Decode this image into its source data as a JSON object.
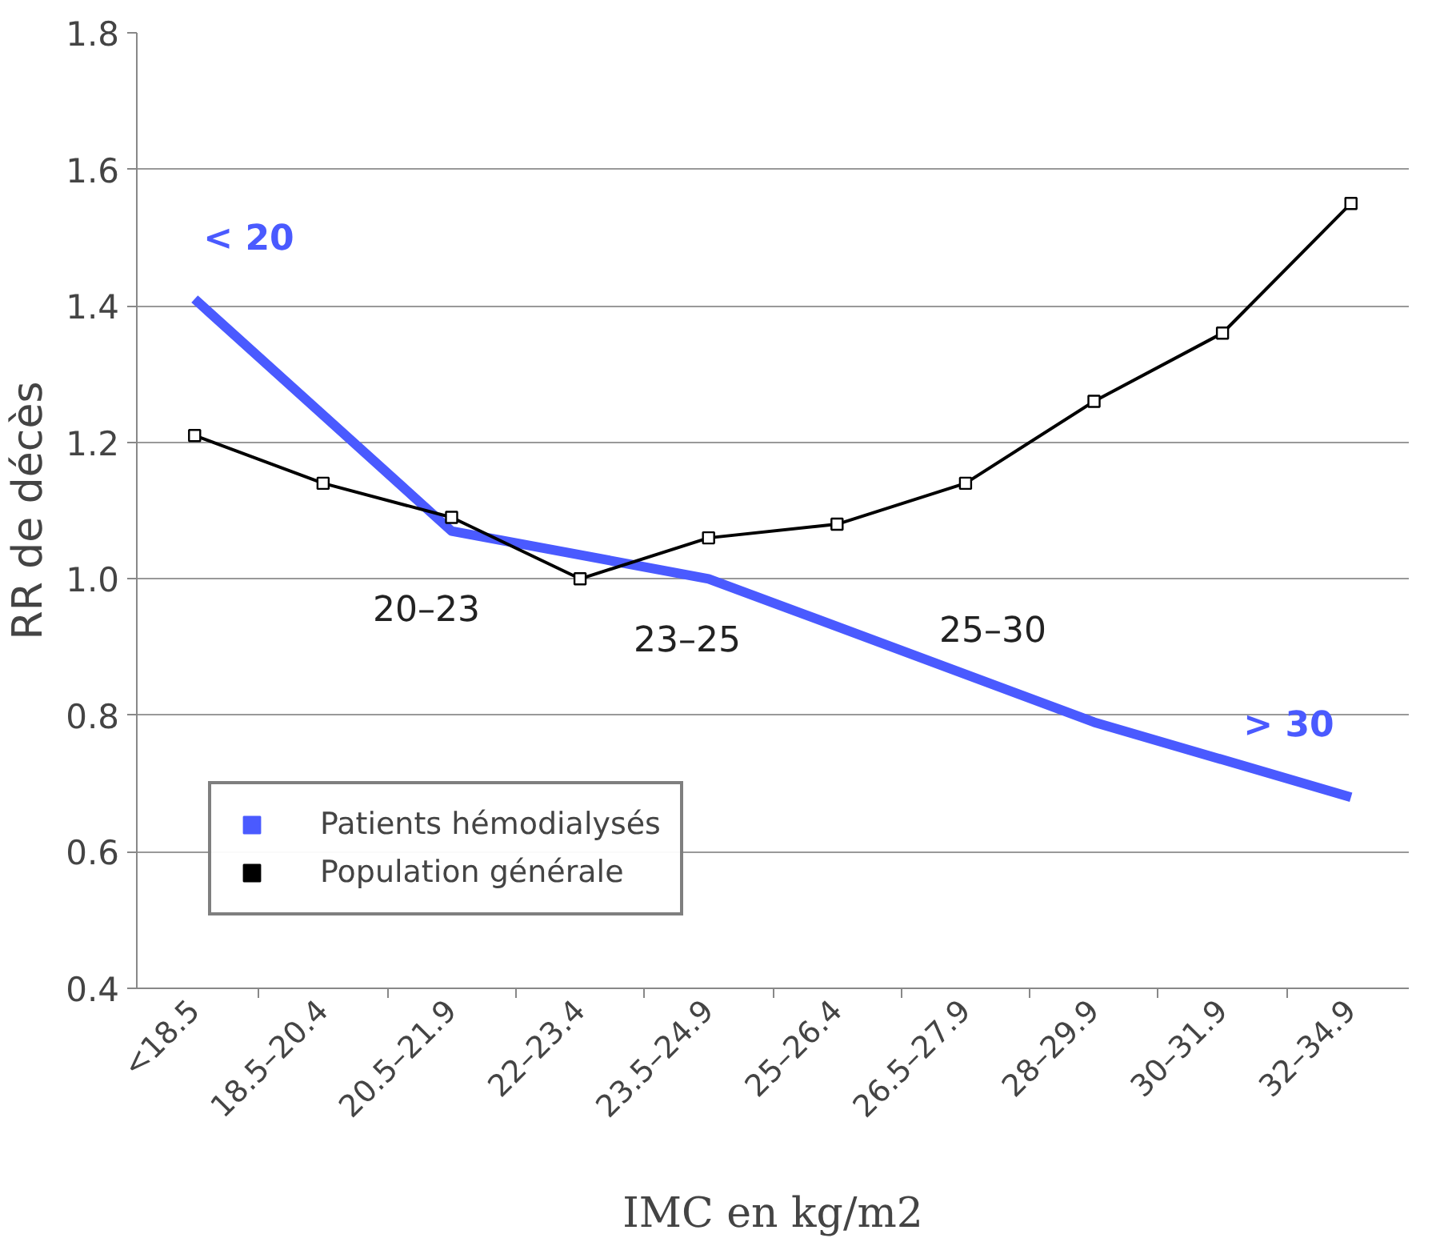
{
  "chart_data": {
    "type": "line",
    "xlabel": "IMC en kg/m2",
    "ylabel": "RR de décès",
    "categories": [
      "<18.5",
      "18.5–20.4",
      "20.5–21.9",
      "22–23.4",
      "23.5–24.9",
      "25–26.4",
      "26.5–27.9",
      "28–29.9",
      "30–31.9",
      "32–34.9"
    ],
    "series": [
      {
        "name": "Patients hémodialysés",
        "color": "#4a5aff",
        "x": [
          "<18.5",
          "20.5–21.9",
          "23.5–24.9",
          "28–29.9",
          "32–34.9"
        ],
        "values": [
          1.41,
          1.07,
          1.0,
          0.79,
          0.68
        ],
        "marker": "none"
      },
      {
        "name": "Population générale",
        "color": "#000000",
        "values": [
          1.21,
          1.14,
          1.09,
          1.0,
          1.06,
          1.08,
          1.14,
          1.26,
          1.36,
          1.55
        ],
        "marker": "square"
      }
    ],
    "ylim": [
      0.4,
      1.8
    ],
    "yticks": [
      0.4,
      0.6,
      0.8,
      {
        "value": 1.0,
        "label": "1.0"
      },
      1.2,
      1.4,
      1.6,
      1.8
    ],
    "annotations": [
      "< 20",
      "20–23",
      "23–25",
      "25–30",
      "> 30"
    ],
    "grid": "y",
    "legend": "bottom left"
  }
}
